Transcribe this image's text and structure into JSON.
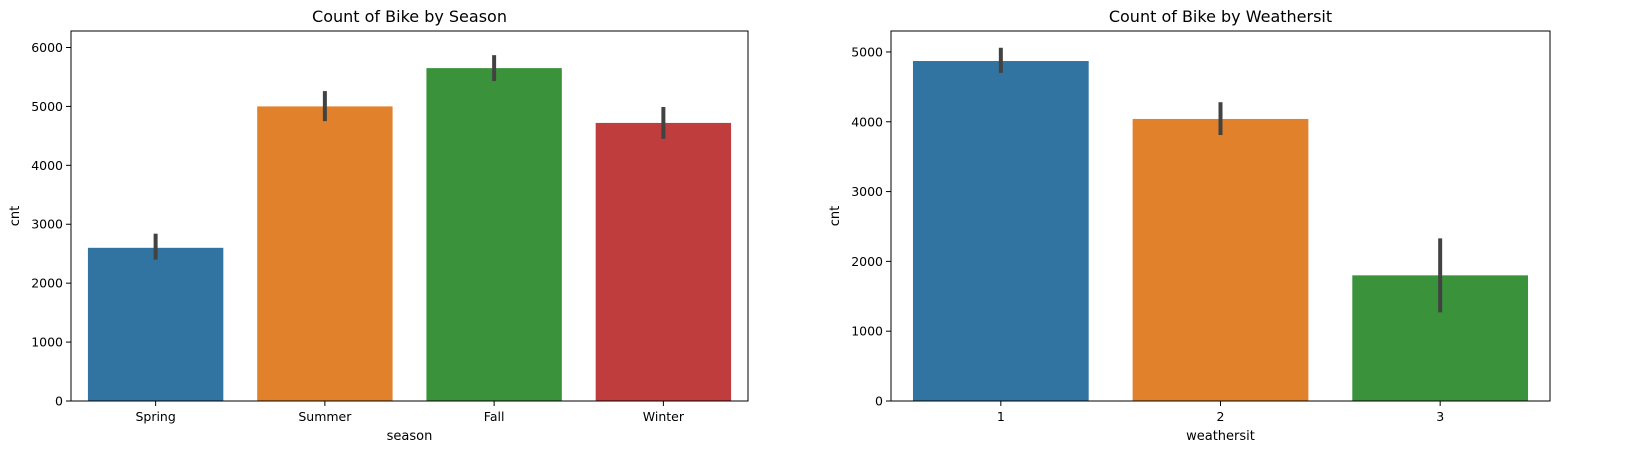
{
  "chart_data": [
    {
      "type": "bar",
      "title": "Count of Bike by Season",
      "xlabel": "season",
      "ylabel": "cnt",
      "ylim": [
        0,
        6280
      ],
      "yticks": [
        0,
        1000,
        2000,
        3000,
        4000,
        5000,
        6000
      ],
      "categories": [
        "Spring",
        "Summer",
        "Fall",
        "Winter"
      ],
      "values": [
        2600,
        5000,
        5650,
        4720
      ],
      "ci_low": [
        2400,
        4750,
        5430,
        4450
      ],
      "ci_high": [
        2840,
        5260,
        5870,
        4990
      ],
      "colors": [
        "#3274a1",
        "#e1812c",
        "#3a923a",
        "#c03d3e"
      ],
      "grid": false
    },
    {
      "type": "bar",
      "title": "Count of Bike by Weathersit",
      "xlabel": "weathersit",
      "ylabel": "cnt",
      "ylim": [
        0,
        5300
      ],
      "yticks": [
        0,
        1000,
        2000,
        3000,
        4000,
        5000
      ],
      "categories": [
        "1",
        "2",
        "3"
      ],
      "values": [
        4870,
        4040,
        1800
      ],
      "ci_low": [
        4700,
        3810,
        1270
      ],
      "ci_high": [
        5060,
        4280,
        2330
      ],
      "colors": [
        "#3274a1",
        "#e1812c",
        "#3a923a"
      ],
      "grid": false
    }
  ]
}
